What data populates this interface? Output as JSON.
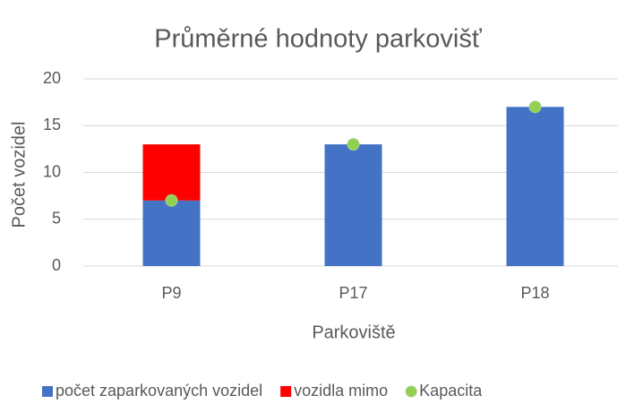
{
  "chart_data": {
    "type": "bar",
    "stacked": true,
    "title": "Průměrné hodnoty parkovišť",
    "xlabel": "Parkoviště",
    "ylabel": "Počet vozidel",
    "categories": [
      "P9",
      "P17",
      "P18"
    ],
    "series": [
      {
        "name": "počet zaparkovaných vozidel",
        "type": "bar",
        "color": "#4472c4",
        "values": [
          7,
          13,
          17
        ]
      },
      {
        "name": "vozidla mimo",
        "type": "bar",
        "color": "#ff0000",
        "values": [
          6,
          0,
          0
        ]
      },
      {
        "name": "Kapacita",
        "type": "scatter",
        "color": "#92d050",
        "values": [
          7,
          13,
          17
        ]
      }
    ],
    "ylim": [
      0,
      20
    ],
    "yticks": [
      0,
      5,
      10,
      15,
      20
    ],
    "grid": true,
    "legend": "bottom"
  }
}
